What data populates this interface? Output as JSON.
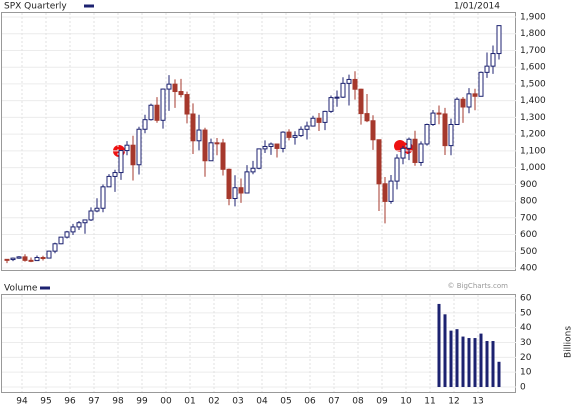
{
  "chart_data": [
    {
      "type": "candlestick",
      "title": "SPX Quarterly",
      "date": "1/01/2014",
      "watermark": "© BigCharts.com",
      "up_color": "#1c2270",
      "down_color": "#a6382c",
      "grid": true,
      "ylim": [
        400,
        1900
      ],
      "yticks": [
        400,
        500,
        600,
        700,
        800,
        900,
        {
          "value": 1000,
          "label": "1,000"
        },
        {
          "value": 1100,
          "label": "1,100"
        },
        {
          "value": 1200,
          "label": "1,200"
        },
        {
          "value": 1300,
          "label": "1,300"
        },
        {
          "value": 1400,
          "label": "1,400"
        },
        {
          "value": 1500,
          "label": "1,500"
        },
        {
          "value": 1600,
          "label": "1,600"
        },
        {
          "value": 1700,
          "label": "1,700"
        },
        {
          "value": 1800,
          "label": "1,800"
        },
        {
          "value": 1900,
          "label": "1,900"
        }
      ],
      "open": [
        451.7,
        450.5,
        458.9,
        466.5,
        445.8,
        444.3,
        462.7,
        459.3,
        500.7,
        544.8,
        584.4,
        615.9,
        645.5,
        670.6,
        687.3,
        740.7,
        757.1,
        885.1,
        947.3,
        970.4,
        1101.8,
        1133.8,
        1017,
        1229.2,
        1286.4,
        1372.7,
        1282.7,
        1469.3,
        1498.6,
        1454.6,
        1436.5,
        1320.3,
        1160.3,
        1224.4,
        1040.9,
        1148.1,
        1147.4,
        989.8,
        815.3,
        879.8,
        848.2,
        974.5,
        996,
        1111.9,
        1126.2,
        1140.8,
        1114.6,
        1211.9,
        1180.6,
        1191.3,
        1228.8,
        1248.3,
        1294.8,
        1270.2,
        1335.9,
        1418.3,
        1420.9,
        1503.4,
        1526.8,
        1468.4,
        1322.7,
        1280,
        1166.4,
        903.3,
        797.9,
        919.3,
        1057.1,
        1115.1,
        1169.4,
        1030.7,
        1141.2,
        1257.6,
        1325.8,
        1320.6,
        1131.4,
        1257.6,
        1408.5,
        1362.2,
        1440.7,
        1426.2,
        1569.2,
        1606.3,
        1681.6
      ],
      "high": [
        453,
        463,
        471,
        482,
        463,
        475,
        473,
        504,
        552,
        586,
        622,
        664,
        681,
        690,
        762,
        817,
        899,
        961,
        987,
        1105,
        1158,
        1190,
        1244,
        1316,
        1382,
        1421,
        1473,
        1553,
        1527,
        1530,
        1454,
        1384,
        1316,
        1238,
        1173,
        1177,
        1172,
        994,
        954,
        935,
        1015,
        1040,
        1112,
        1163,
        1150,
        1141,
        1217,
        1229,
        1217,
        1246,
        1275,
        1310,
        1326,
        1340,
        1431,
        1461,
        1540,
        1556,
        1576,
        1471,
        1440,
        1313,
        1167,
        944,
        956,
        1080,
        1130,
        1180,
        1220,
        1157,
        1263,
        1344,
        1371,
        1357,
        1293,
        1420,
        1422,
        1475,
        1471,
        1574,
        1688,
        1730,
        1850
      ],
      "low": [
        429,
        441,
        455,
        438,
        435,
        443,
        445,
        457,
        488,
        542,
        576,
        597,
        627,
        605,
        681,
        733,
        733,
        885,
        855,
        927,
        1074,
        923,
        959,
        1205,
        1281,
        1268,
        1233,
        1339,
        1357,
        1420,
        1264,
        1081,
        1103,
        945,
        1040,
        1074,
        953,
        775,
        768,
        789,
        847,
        960,
        990,
        1087,
        1076,
        1060,
        1091,
        1163,
        1137,
        1183,
        1168,
        1245,
        1219,
        1224,
        1327,
        1364,
        1416,
        1371,
        1406,
        1257,
        1272,
        1106,
        741,
        667,
        784,
        870,
        1020,
        1045,
        1011,
        1010,
        1131,
        1249,
        1259,
        1075,
        1074,
        1259,
        1267,
        1325,
        1343,
        1426,
        1536,
        1560,
        1646
      ],
      "close": [
        450.5,
        458.9,
        466.5,
        445.8,
        444.3,
        462.7,
        459.3,
        500.7,
        544.8,
        584.4,
        615.9,
        645.5,
        670.6,
        687.3,
        740.7,
        757.1,
        885.1,
        947.3,
        970.4,
        1101.8,
        1133.8,
        1017,
        1229.2,
        1286.4,
        1372.7,
        1282.7,
        1469.3,
        1498.6,
        1454.6,
        1436.5,
        1320.3,
        1160.3,
        1224.4,
        1040.9,
        1148.1,
        1147.4,
        989.8,
        815.3,
        879.8,
        848.2,
        974.5,
        996,
        1111.9,
        1126.2,
        1140.8,
        1114.6,
        1211.9,
        1180.6,
        1191.3,
        1228.8,
        1248.3,
        1294.8,
        1270.2,
        1335.9,
        1418.3,
        1420.9,
        1503.4,
        1526.8,
        1468.4,
        1322.7,
        1280,
        1166.4,
        903.3,
        797.9,
        919.3,
        1057.1,
        1115.1,
        1169.4,
        1030.7,
        1141.2,
        1257.6,
        1325.8,
        1320.6,
        1131.4,
        1257.6,
        1408.5,
        1362.2,
        1440.7,
        1426.2,
        1569.2,
        1606.3,
        1681.6,
        1848.4
      ]
    },
    {
      "type": "bar",
      "title": "Volume",
      "y_label": "Billions",
      "color": "#1c2270",
      "grid": true,
      "ylim": [
        0,
        60
      ],
      "yticks": [
        0,
        10,
        20,
        30,
        40,
        50,
        60
      ],
      "categories": [
        null,
        null,
        null,
        "94",
        null,
        null,
        null,
        "95",
        null,
        null,
        null,
        "96",
        null,
        null,
        null,
        "97",
        null,
        null,
        null,
        "98",
        null,
        null,
        null,
        "99",
        null,
        null,
        null,
        "00",
        null,
        null,
        null,
        "01",
        null,
        null,
        null,
        "02",
        null,
        null,
        null,
        "03",
        null,
        null,
        null,
        "04",
        null,
        null,
        null,
        "05",
        null,
        null,
        null,
        "06",
        null,
        null,
        null,
        "07",
        null,
        null,
        null,
        "08",
        null,
        null,
        null,
        "09",
        null,
        null,
        null,
        "10",
        null,
        null,
        null,
        "11",
        null,
        null,
        null,
        "12",
        null,
        null,
        null,
        "13",
        null,
        null,
        null
      ],
      "values": [
        null,
        null,
        null,
        null,
        null,
        null,
        null,
        null,
        null,
        null,
        null,
        null,
        null,
        null,
        null,
        null,
        null,
        null,
        null,
        null,
        null,
        null,
        null,
        null,
        null,
        null,
        null,
        null,
        null,
        null,
        null,
        null,
        null,
        null,
        null,
        null,
        null,
        null,
        null,
        null,
        null,
        null,
        null,
        null,
        null,
        null,
        null,
        null,
        null,
        null,
        null,
        null,
        null,
        null,
        null,
        null,
        null,
        null,
        null,
        null,
        null,
        null,
        null,
        null,
        null,
        null,
        null,
        null,
        null,
        null,
        null,
        null,
        56,
        49,
        38,
        39,
        34,
        33,
        33,
        36,
        31,
        31,
        17
      ]
    }
  ]
}
